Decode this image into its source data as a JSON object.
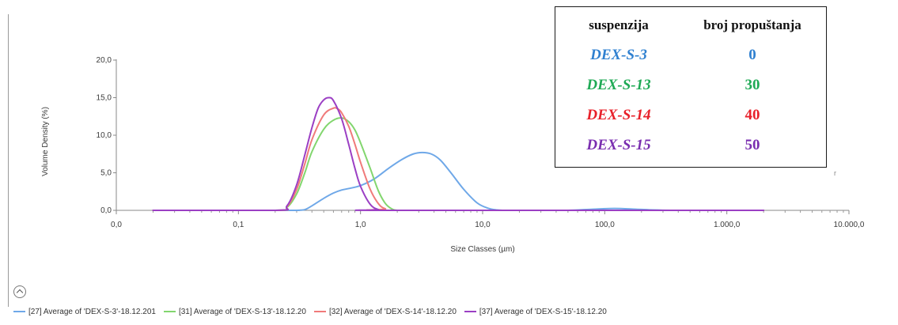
{
  "chart_data": {
    "type": "line",
    "x_scale": "log",
    "xlabel": "Size Classes (µm)",
    "ylabel": "Volume Density (%)",
    "xlim": [
      0.01,
      10000
    ],
    "ylim": [
      0,
      20
    ],
    "grid": false,
    "x_ticks": [
      {
        "value": 0.01,
        "label": "0,0"
      },
      {
        "value": 0.1,
        "label": "0,1"
      },
      {
        "value": 1,
        "label": "1,0"
      },
      {
        "value": 10,
        "label": "10,0"
      },
      {
        "value": 100,
        "label": "100,0"
      },
      {
        "value": 1000,
        "label": "1.000,0"
      },
      {
        "value": 10000,
        "label": "10.000,0"
      }
    ],
    "y_ticks": [
      {
        "value": 0,
        "label": "0,0"
      },
      {
        "value": 5,
        "label": "5,0"
      },
      {
        "value": 10,
        "label": "10,0"
      },
      {
        "value": 15,
        "label": "15,0"
      },
      {
        "value": 20,
        "label": "20,0"
      }
    ],
    "series": [
      {
        "name": "[27] Average of 'DEX-S-3'-18.12.201",
        "color": "#6fa8e8",
        "x": [
          0.02,
          0.25,
          0.3,
          0.35,
          0.4,
          0.5,
          0.6,
          0.7,
          0.8,
          1.0,
          1.3,
          1.7,
          2.2,
          2.7,
          3.2,
          3.8,
          4.5,
          5.5,
          7,
          9,
          11,
          13,
          15,
          20,
          30,
          50,
          80,
          120,
          180,
          250,
          350,
          600,
          2000
        ],
        "y": [
          0,
          0,
          0,
          0.1,
          0.6,
          1.6,
          2.3,
          2.7,
          2.9,
          3.3,
          4.2,
          5.6,
          6.8,
          7.5,
          7.7,
          7.5,
          6.7,
          5.0,
          2.8,
          1.0,
          0.3,
          0.05,
          0,
          0,
          0,
          0,
          0.15,
          0.25,
          0.15,
          0.05,
          0,
          0,
          0
        ]
      },
      {
        "name": "[31] Average of 'DEX-S-13'-18.12.20",
        "color": "#82d66e",
        "x": [
          0.02,
          0.2,
          0.25,
          0.3,
          0.35,
          0.4,
          0.5,
          0.6,
          0.7,
          0.8,
          0.9,
          1.0,
          1.2,
          1.4,
          1.6,
          1.8,
          2.0,
          2.5,
          2000
        ],
        "y": [
          0,
          0,
          0.4,
          2.2,
          5.0,
          7.8,
          10.8,
          12.0,
          12.3,
          11.8,
          10.7,
          9.0,
          5.6,
          2.6,
          0.9,
          0.2,
          0,
          0,
          0
        ]
      },
      {
        "name": "[32] Average of 'DEX-S-14'-18.12.20",
        "color": "#f07a7a",
        "x": [
          0.02,
          0.2,
          0.25,
          0.3,
          0.35,
          0.4,
          0.5,
          0.6,
          0.65,
          0.7,
          0.8,
          0.9,
          1.0,
          1.2,
          1.4,
          1.6,
          2.0,
          2000
        ],
        "y": [
          0,
          0,
          0.5,
          2.8,
          6.2,
          9.4,
          12.7,
          13.6,
          13.5,
          13.0,
          11.2,
          8.8,
          6.4,
          2.8,
          0.9,
          0.2,
          0,
          0
        ]
      },
      {
        "name": "[37] Average of 'DEX-S-15'-18.12.20",
        "color": "#9b3fc4",
        "x": [
          0.02,
          0.2,
          0.25,
          0.3,
          0.35,
          0.4,
          0.45,
          0.5,
          0.55,
          0.6,
          0.7,
          0.8,
          0.9,
          1.0,
          1.2,
          1.4,
          1.6,
          2000
        ],
        "y": [
          0,
          0,
          0.6,
          3.4,
          7.4,
          11.0,
          13.6,
          14.7,
          15.0,
          14.6,
          12.2,
          8.8,
          5.6,
          3.2,
          0.8,
          0.1,
          0,
          0
        ]
      }
    ]
  },
  "inset_table": {
    "header": [
      "suspenzija",
      "broj propuštanja"
    ],
    "rows": [
      {
        "name": "DEX-S-3",
        "count": "0",
        "color": "#2f80d0"
      },
      {
        "name": "DEX-S-13",
        "count": "30",
        "color": "#1faa55"
      },
      {
        "name": "DEX-S-14",
        "count": "40",
        "color": "#e8202a"
      },
      {
        "name": "DEX-S-15",
        "count": "50",
        "color": "#7a2eb0"
      }
    ]
  },
  "corner_mark": "r"
}
